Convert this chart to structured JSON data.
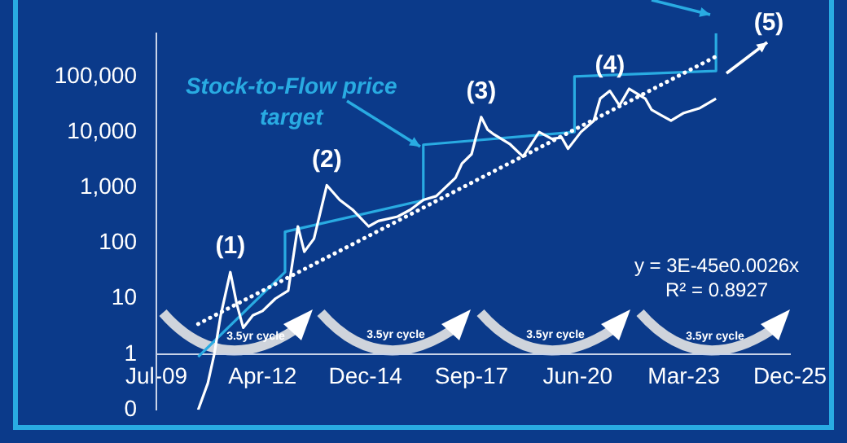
{
  "chart_data": {
    "type": "line",
    "log": true,
    "grid": false,
    "legend": false,
    "marker": "none",
    "xlim": [
      "2009-07",
      "2025-12"
    ],
    "xticks": [
      {
        "value": "2009-07",
        "label": "Jul-09"
      },
      {
        "value": "2012-04",
        "label": "Apr-12"
      },
      {
        "value": "2014-12",
        "label": "Dec-14"
      },
      {
        "value": "2017-09",
        "label": "Sep-17"
      },
      {
        "value": "2020-06",
        "label": "Jun-20"
      },
      {
        "value": "2023-03",
        "label": "Mar-23"
      },
      {
        "value": "2025-12",
        "label": "Dec-25"
      }
    ],
    "ylim": [
      0.1,
      600000
    ],
    "yticks": [
      {
        "value": 0.1,
        "label": "0"
      },
      1,
      10,
      100,
      {
        "value": 1000,
        "label": "1,000"
      },
      {
        "value": 10000,
        "label": "10,000"
      },
      {
        "value": 100000,
        "label": "100,000"
      }
    ],
    "series": [
      {
        "type": "line",
        "color": "#29abe2",
        "line_style": "solid",
        "x": [
          "2010-08",
          "2012-11",
          "2012-11",
          "2016-06",
          "2016-06",
          "2020-05",
          "2020-05",
          "2024-01",
          "2024-01"
        ],
        "values": [
          0.9,
          30,
          160,
          590,
          5900,
          10000,
          100000,
          126000,
          600000
        ]
      },
      {
        "type": "line",
        "color": "#ffffff",
        "line_style": "dotted",
        "x": [
          "2010-08",
          "2024-02"
        ],
        "values": [
          3.5,
          245000
        ]
      },
      {
        "type": "line",
        "color": "#ffffff",
        "line_style": "solid",
        "x": [
          "2010-08",
          "2010-11",
          "2011-01",
          "2011-03",
          "2011-06",
          "2011-08",
          "2011-10",
          "2012-01",
          "2012-04",
          "2012-08",
          "2012-12",
          "2013-03",
          "2013-05",
          "2013-08",
          "2013-12",
          "2014-04",
          "2014-08",
          "2015-01",
          "2015-04",
          "2015-10",
          "2016-02",
          "2016-06",
          "2016-10",
          "2017-04",
          "2017-06",
          "2017-09",
          "2017-12",
          "2018-02",
          "2018-04",
          "2018-09",
          "2019-01",
          "2019-06",
          "2019-10",
          "2020-01",
          "2020-03",
          "2020-07",
          "2020-11",
          "2021-01",
          "2021-04",
          "2021-07",
          "2021-10",
          "2022-03",
          "2022-05",
          "2022-08",
          "2022-11",
          "2023-03",
          "2023-08",
          "2024-01"
        ],
        "values": [
          0.1,
          0.3,
          1,
          5,
          30,
          8,
          3,
          5,
          6,
          10,
          14,
          200,
          70,
          120,
          1100,
          600,
          400,
          200,
          250,
          300,
          400,
          600,
          700,
          1500,
          2700,
          4000,
          18600,
          11000,
          9000,
          6000,
          3600,
          10000,
          7500,
          8000,
          5000,
          10000,
          16000,
          40000,
          55000,
          30000,
          60000,
          40000,
          25000,
          20000,
          16000,
          22000,
          27000,
          40000
        ]
      }
    ],
    "annotations": [
      {
        "text": "(1)",
        "x": "2011-06",
        "y": 30
      },
      {
        "text": "(2)",
        "x": "2013-12",
        "y": 1100
      },
      {
        "text": "(3)",
        "x": "2017-12",
        "y": 18600
      },
      {
        "text": "(4)",
        "x": "2021-04",
        "y": 55000
      },
      "(5)",
      {
        "text": "Stock-to-Flow price target",
        "x": "2016-06",
        "y": 3000
      },
      "y = 3E-45e0.0026x",
      "R² = 0.8927",
      "3.5yr cycle",
      "3.5yr cycle",
      "3.5yr cycle",
      "3.5yr cycle"
    ]
  }
}
